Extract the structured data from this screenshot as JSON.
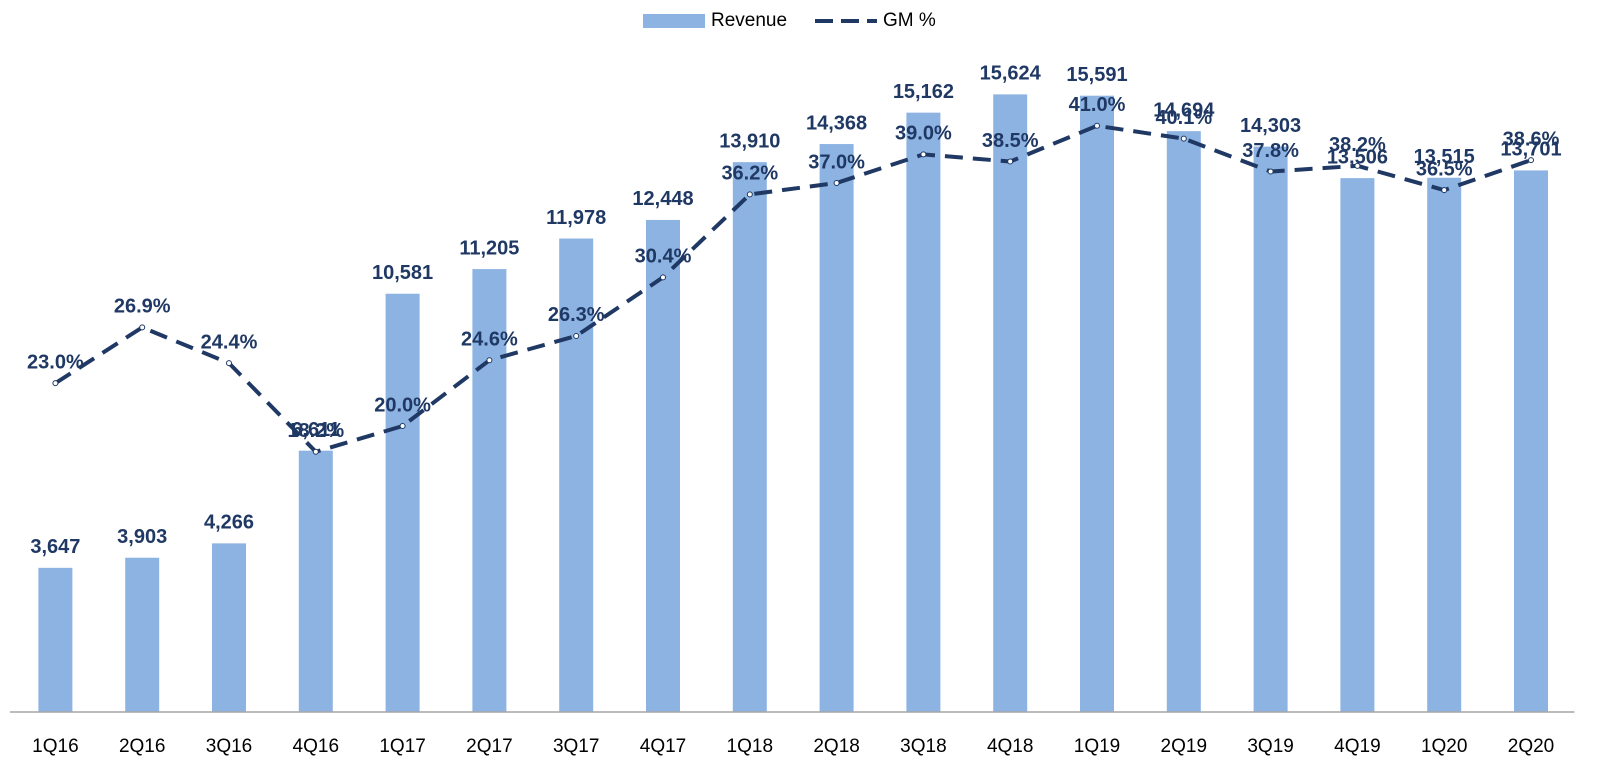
{
  "chart_data": {
    "type": "bar",
    "categories": [
      "1Q16",
      "2Q16",
      "3Q16",
      "4Q16",
      "1Q17",
      "2Q17",
      "3Q17",
      "4Q17",
      "1Q18",
      "2Q18",
      "3Q18",
      "4Q18",
      "1Q19",
      "2Q19",
      "3Q19",
      "4Q19",
      "1Q20",
      "2Q20"
    ],
    "series": [
      {
        "name": "Revenue",
        "type": "bar",
        "color": "#8db3e2",
        "values": [
          3647,
          3903,
          4266,
          6611,
          10581,
          11205,
          11978,
          12448,
          13910,
          14368,
          15162,
          15624,
          15591,
          14694,
          14303,
          13506,
          13515,
          13701
        ],
        "value_labels": [
          "3,647",
          "3,903",
          "4,266",
          "6,611",
          "10,581",
          "11,205",
          "11,978",
          "12,448",
          "13,910",
          "14,368",
          "15,162",
          "15,624",
          "15,591",
          "14,694",
          "14,303",
          "13,506",
          "13,515",
          "13,701"
        ]
      },
      {
        "name": "GM %",
        "type": "line",
        "axis": "y2",
        "color": "#1f3864",
        "values": [
          23.0,
          26.9,
          24.4,
          18.2,
          20.0,
          24.6,
          26.3,
          30.4,
          36.2,
          37.0,
          39.0,
          38.5,
          41.0,
          40.1,
          37.8,
          38.2,
          36.5,
          38.6
        ],
        "value_labels": [
          "23.0%",
          "26.9%",
          "24.4%",
          "18.2%",
          "20.0%",
          "24.6%",
          "26.3%",
          "30.4%",
          "36.2%",
          "37.0%",
          "39.0%",
          "38.5%",
          "41.0%",
          "40.1%",
          "37.8%",
          "38.2%",
          "36.5%",
          "38.6%"
        ]
      }
    ],
    "ylim": [
      0,
      17000
    ],
    "y2lim": [
      0,
      47
    ],
    "legend": "top"
  }
}
